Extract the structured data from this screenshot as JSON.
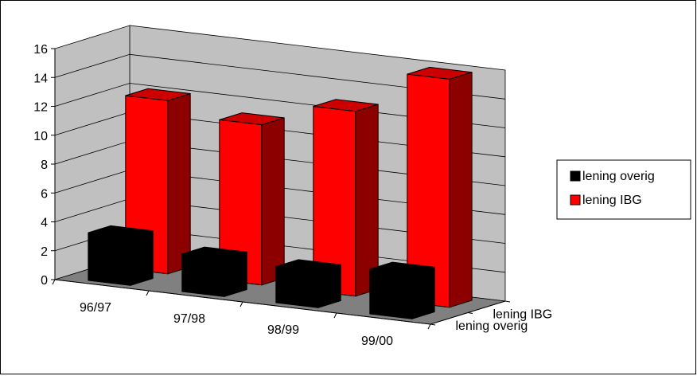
{
  "chart_data": {
    "type": "bar",
    "style": "3d-column",
    "categories": [
      "96/97",
      "97/98",
      "98/99",
      "99/00"
    ],
    "depth_categories": [
      "lening overig",
      "lening IBG"
    ],
    "series": [
      {
        "name": "lening overig",
        "values": [
          3.3,
          2.6,
          2.5,
          3.1
        ],
        "color": "#000000"
      },
      {
        "name": "lening IBG",
        "values": [
          12.0,
          11.1,
          12.8,
          15.8
        ],
        "color": "#ff0000"
      }
    ],
    "y_ticks": [
      "0",
      "2",
      "4",
      "6",
      "8",
      "10",
      "12",
      "14",
      "16"
    ],
    "ylim": [
      0,
      16
    ],
    "grid": true,
    "legend_position": "right",
    "colors": {
      "wall": "#c0c0c0",
      "floor": "#808080",
      "grid": "#000000"
    }
  }
}
